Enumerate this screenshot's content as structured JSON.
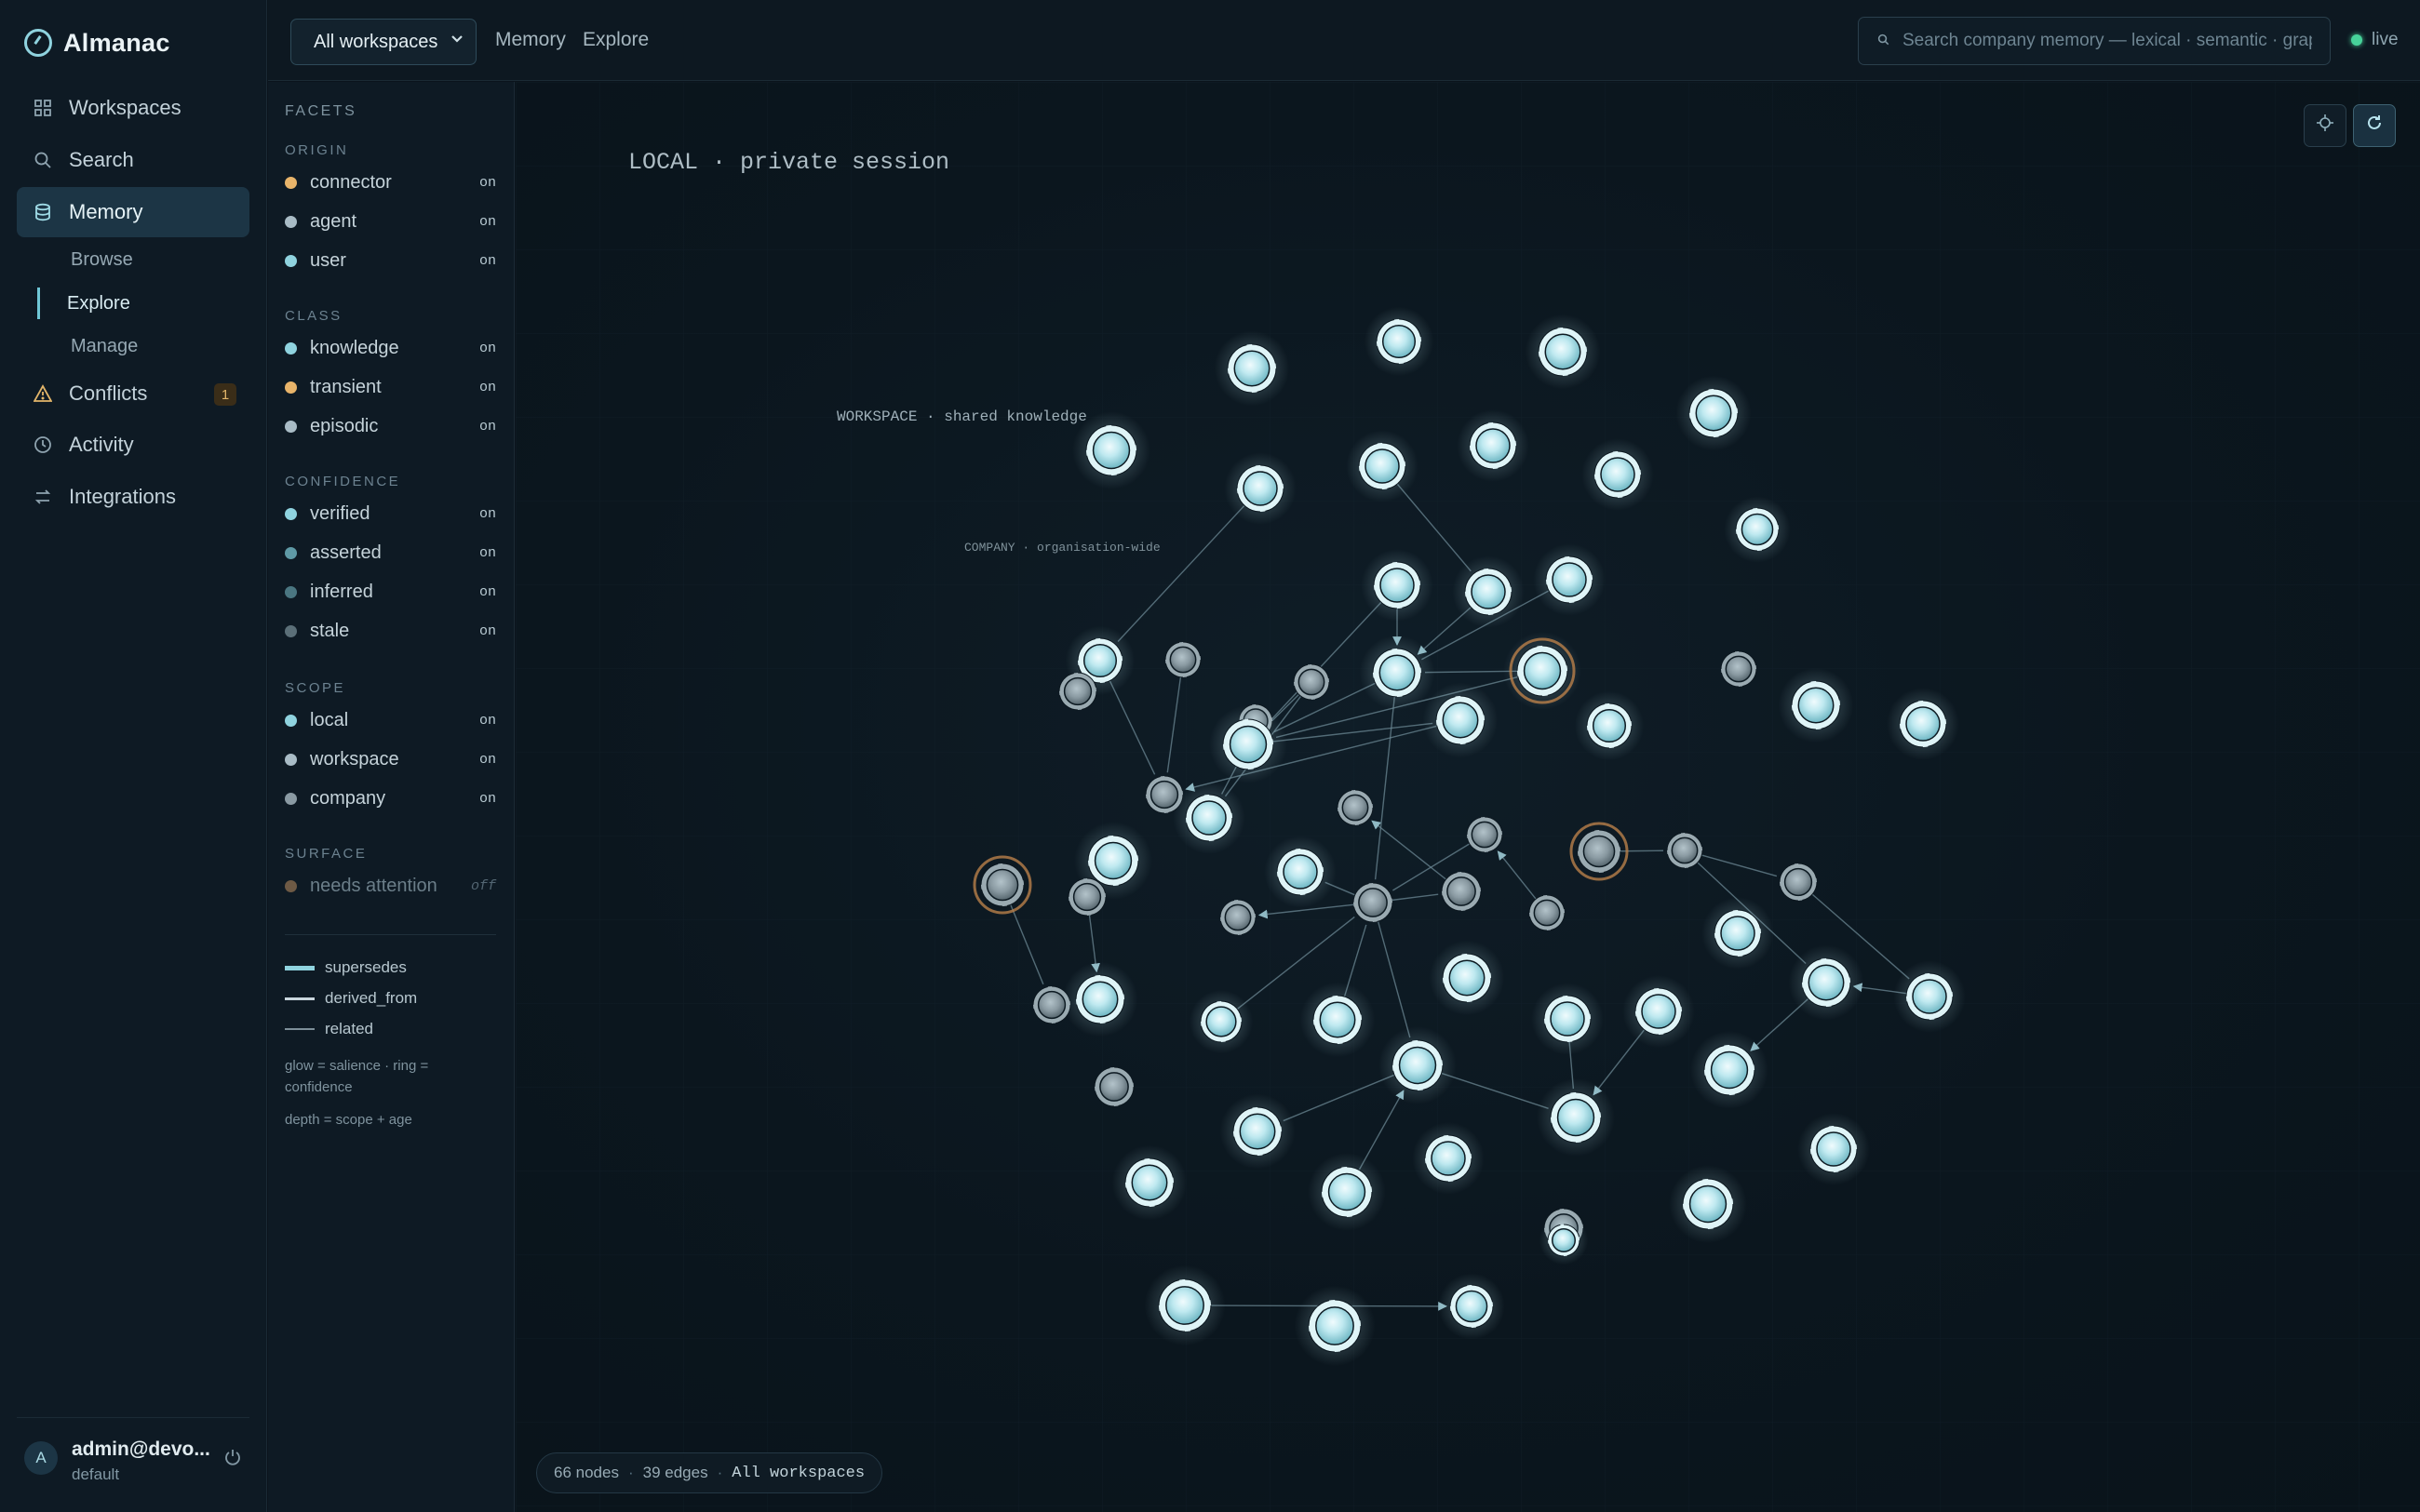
{
  "app": {
    "name": "Almanac"
  },
  "nav": {
    "items": [
      {
        "label": "Workspaces",
        "icon": "grid-icon"
      },
      {
        "label": "Search",
        "icon": "search-icon"
      },
      {
        "label": "Memory",
        "icon": "database-icon",
        "active": true
      },
      {
        "label": "Conflicts",
        "icon": "warning-icon",
        "badge": "1"
      },
      {
        "label": "Activity",
        "icon": "clock-icon"
      },
      {
        "label": "Integrations",
        "icon": "swap-icon"
      }
    ],
    "memory_sub": [
      "Browse",
      "Explore",
      "Manage"
    ],
    "active_sub": "Explore"
  },
  "user": {
    "initial": "A",
    "name": "admin@devo...",
    "workspace": "default"
  },
  "topbar": {
    "workspace_select": "All workspaces",
    "breadcrumb": [
      "Memory",
      "Explore"
    ],
    "search_placeholder": "Search company memory — lexical · semantic · graph",
    "live_label": "live"
  },
  "facets": {
    "title": "FACETS",
    "groups": [
      {
        "label": "ORIGIN",
        "items": [
          {
            "label": "connector",
            "state": "on",
            "color": "#e8b46a"
          },
          {
            "label": "agent",
            "state": "on",
            "color": "#a9bcc6"
          },
          {
            "label": "user",
            "state": "on",
            "color": "#8fd3df"
          }
        ]
      },
      {
        "label": "CLASS",
        "items": [
          {
            "label": "knowledge",
            "state": "on",
            "color": "#8fd3df"
          },
          {
            "label": "transient",
            "state": "on",
            "color": "#e8b46a"
          },
          {
            "label": "episodic",
            "state": "on",
            "color": "#a9bcc6"
          }
        ]
      },
      {
        "label": "CONFIDENCE",
        "items": [
          {
            "label": "verified",
            "state": "on",
            "color": "#8fd3df"
          },
          {
            "label": "asserted",
            "state": "on",
            "color": "#5f9aa6"
          },
          {
            "label": "inferred",
            "state": "on",
            "color": "#4a7681"
          },
          {
            "label": "stale",
            "state": "on",
            "color": "#5b6f78"
          }
        ]
      },
      {
        "label": "SCOPE",
        "items": [
          {
            "label": "local",
            "state": "on",
            "color": "#8fd3df"
          },
          {
            "label": "workspace",
            "state": "on",
            "color": "#a9bcc6"
          },
          {
            "label": "company",
            "state": "on",
            "color": "#8a9aa3"
          }
        ]
      },
      {
        "label": "SURFACE",
        "items": [
          {
            "label": "needs attention",
            "state": "off",
            "color": "#6e5a45",
            "dim": true
          }
        ]
      }
    ],
    "legend": [
      {
        "label": "supersedes",
        "color": "#8fd3df"
      },
      {
        "label": "derived_from",
        "color": "#c9d6dd"
      },
      {
        "label": "related",
        "color": "#7d8f99"
      }
    ],
    "notes": [
      "glow = salience · ring = confidence",
      "depth = scope + age"
    ]
  },
  "canvas": {
    "layers": [
      "LOCAL · private session",
      "WORKSPACE · shared knowledge",
      "COMPANY · organisation-wide"
    ],
    "controls": [
      {
        "name": "recenter",
        "icon": "crosshair-icon"
      },
      {
        "name": "refresh",
        "icon": "refresh-icon",
        "active": true
      }
    ],
    "status": {
      "nodes": "66 nodes",
      "edges": "39 edges",
      "scope": "All workspaces"
    },
    "colors": {
      "bright": "#bfe9f0",
      "dim": "#8a9aa2",
      "alert_ring": "#b9804a"
    }
  }
}
